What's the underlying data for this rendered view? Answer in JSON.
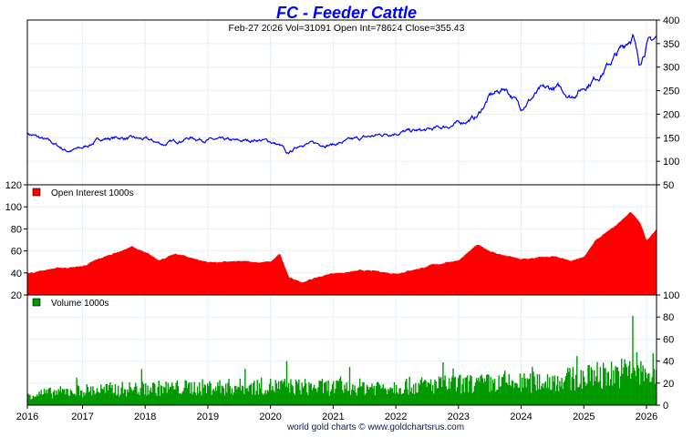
{
  "chart_data": {
    "type": "line",
    "title": "FC  -  Feeder Cattle",
    "subtitle": "Feb-27  2026   Vol=31091   Open Int=78624   Close=355.43",
    "footer": "world gold charts © www.goldchartsrus.com",
    "x_ticks": [
      "2016",
      "2017",
      "2018",
      "2019",
      "2020",
      "2021",
      "2022",
      "2023",
      "2024",
      "2025",
      "2026"
    ],
    "xlim": [
      2016.12,
      2026.16
    ],
    "colors": {
      "price": "#0000ff",
      "open_interest": "#ff0000",
      "volume": "#009900",
      "title": "#0000ff",
      "grid": "#e4eef8"
    },
    "panels": [
      {
        "name": "price",
        "type": "line",
        "ylim": [
          50,
          400
        ],
        "y_ticks": [
          "400",
          "350",
          "300",
          "250",
          "200",
          "150",
          "100",
          "50"
        ],
        "keyframes": [
          [
            2016.12,
            160
          ],
          [
            2016.3,
            150
          ],
          [
            2016.5,
            140
          ],
          [
            2016.75,
            122
          ],
          [
            2017.0,
            128
          ],
          [
            2017.3,
            148
          ],
          [
            2017.6,
            150
          ],
          [
            2018.0,
            146
          ],
          [
            2018.3,
            136
          ],
          [
            2018.7,
            150
          ],
          [
            2019.0,
            146
          ],
          [
            2019.5,
            142
          ],
          [
            2019.8,
            146
          ],
          [
            2020.0,
            142
          ],
          [
            2020.2,
            130
          ],
          [
            2020.25,
            112
          ],
          [
            2020.5,
            138
          ],
          [
            2021.0,
            136
          ],
          [
            2021.5,
            150
          ],
          [
            2022.0,
            162
          ],
          [
            2022.5,
            165
          ],
          [
            2023.0,
            180
          ],
          [
            2023.3,
            195
          ],
          [
            2023.5,
            238
          ],
          [
            2023.75,
            256
          ],
          [
            2024.0,
            215
          ],
          [
            2024.3,
            250
          ],
          [
            2024.6,
            255
          ],
          [
            2024.8,
            238
          ],
          [
            2025.0,
            258
          ],
          [
            2025.3,
            290
          ],
          [
            2025.6,
            338
          ],
          [
            2025.78,
            372
          ],
          [
            2025.88,
            305
          ],
          [
            2026.0,
            350
          ],
          [
            2026.16,
            362
          ]
        ]
      },
      {
        "name": "open_interest",
        "type": "area",
        "legend": "Open Interest  1000s",
        "ylim": [
          20,
          120
        ],
        "y_ticks": [
          "120",
          "100",
          "80",
          "60",
          "40",
          "20"
        ],
        "keyframes": [
          [
            2016.12,
            40
          ],
          [
            2016.5,
            44
          ],
          [
            2017.0,
            46
          ],
          [
            2017.5,
            58
          ],
          [
            2017.8,
            64
          ],
          [
            2018.2,
            52
          ],
          [
            2018.5,
            57
          ],
          [
            2019.0,
            50
          ],
          [
            2019.5,
            50
          ],
          [
            2020.0,
            50
          ],
          [
            2020.15,
            57
          ],
          [
            2020.3,
            35
          ],
          [
            2020.5,
            32
          ],
          [
            2021.0,
            40
          ],
          [
            2021.5,
            42
          ],
          [
            2022.0,
            40
          ],
          [
            2022.5,
            46
          ],
          [
            2023.0,
            52
          ],
          [
            2023.3,
            65
          ],
          [
            2023.6,
            58
          ],
          [
            2024.0,
            52
          ],
          [
            2024.5,
            55
          ],
          [
            2024.8,
            50
          ],
          [
            2025.0,
            55
          ],
          [
            2025.2,
            70
          ],
          [
            2025.5,
            82
          ],
          [
            2025.75,
            96
          ],
          [
            2025.9,
            85
          ],
          [
            2026.0,
            70
          ],
          [
            2026.16,
            79
          ]
        ]
      },
      {
        "name": "volume",
        "type": "bar",
        "legend": "Volume  1000s",
        "ylim": [
          0,
          100
        ],
        "y_ticks": [
          "100",
          "80",
          "60",
          "40",
          "20",
          "0"
        ],
        "keyframes": [
          [
            2016.12,
            10
          ],
          [
            2017.0,
            14
          ],
          [
            2018.0,
            16
          ],
          [
            2019.0,
            17
          ],
          [
            2020.0,
            18
          ],
          [
            2021.0,
            17
          ],
          [
            2022.0,
            18
          ],
          [
            2023.0,
            20
          ],
          [
            2024.0,
            21
          ],
          [
            2025.0,
            26
          ],
          [
            2025.7,
            32
          ],
          [
            2026.16,
            27
          ]
        ],
        "spikes": [
          [
            2020.25,
            40
          ],
          [
            2019.6,
            33
          ],
          [
            2025.78,
            81
          ],
          [
            2025.85,
            48
          ],
          [
            2026.1,
            47
          ]
        ]
      }
    ]
  }
}
